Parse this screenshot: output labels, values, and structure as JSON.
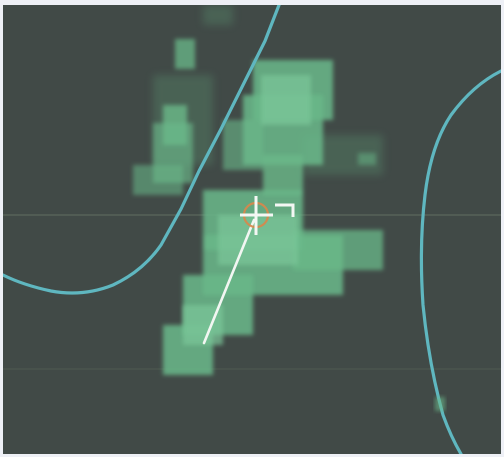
{
  "display": {
    "background": "#414a47",
    "frame": "#eef0f6",
    "echo_color": "#6ab98a",
    "echo_core_color": "#7cc79a",
    "line_color": "#5fb7c0",
    "grid_color": "#6f7c6e",
    "heading_color": "#f2f6f2",
    "marker_ring": "#d9864a",
    "marker_cross": "#f4f7f4",
    "icons": [
      "crosshair-icon",
      "heading-vector"
    ]
  }
}
